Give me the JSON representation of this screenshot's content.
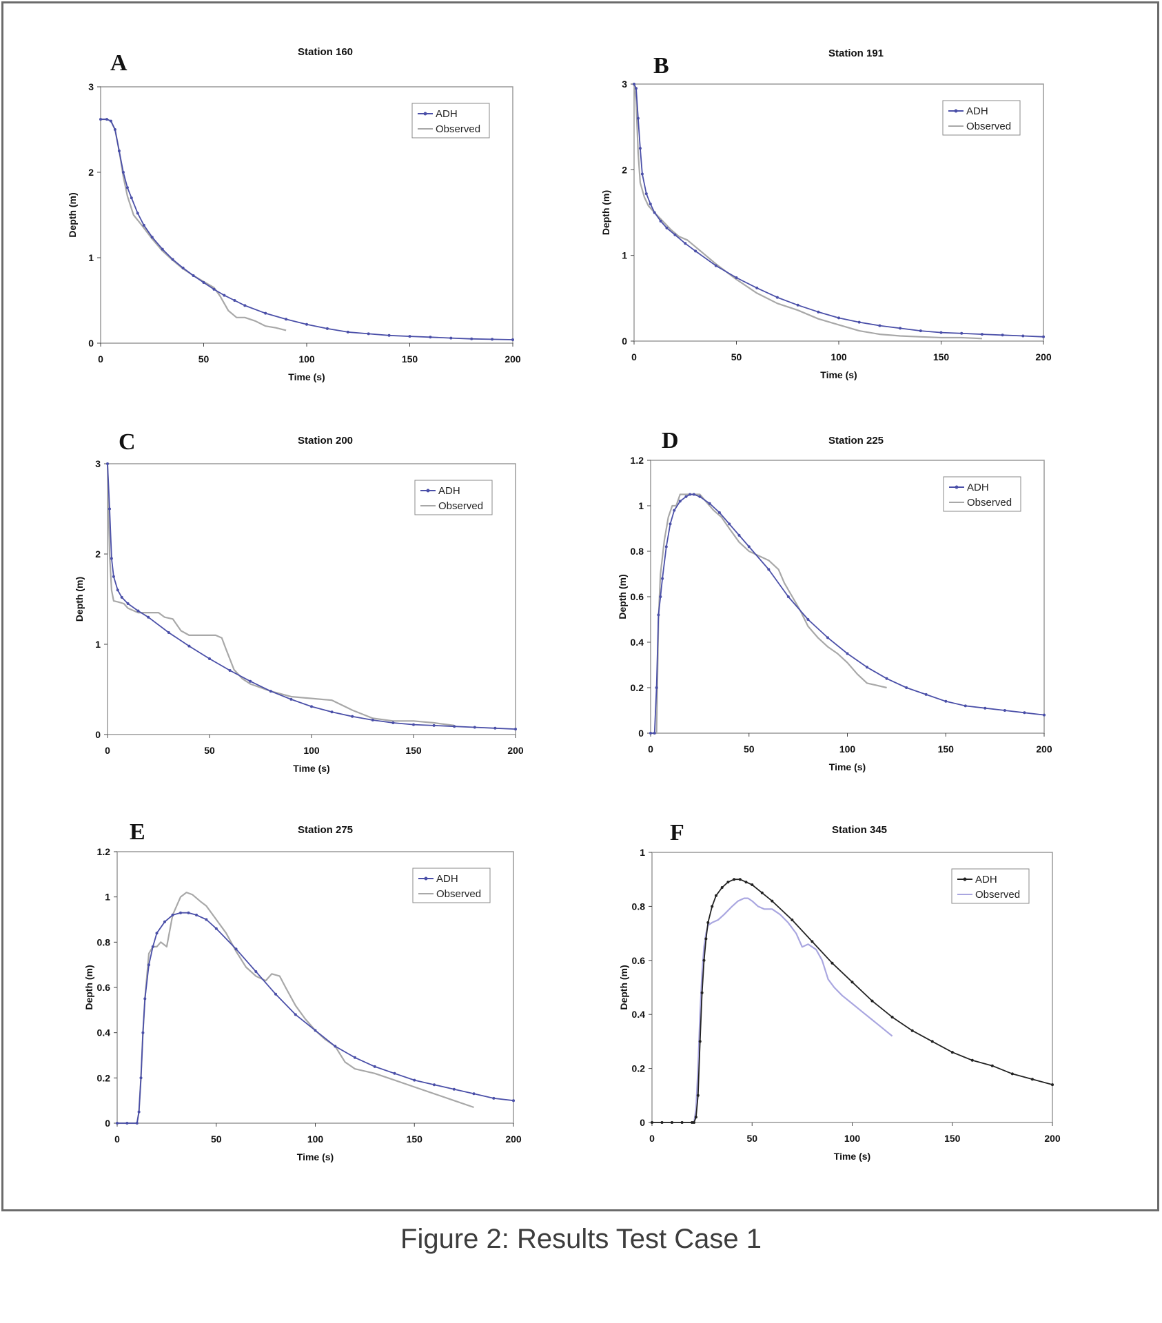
{
  "caption": "Figure 2: Results Test Case 1",
  "colors": {
    "adh_blue": "#4a4fa8",
    "adh_black": "#222222",
    "observed_gray": "#a8a8a8",
    "observed_lavender": "#a9a6e0",
    "frame": "#6b6b6b"
  },
  "chart_data": [
    {
      "type": "line",
      "panel": "A",
      "title": "Station 160",
      "xlabel": "Time (s)",
      "ylabel": "Depth (m)",
      "xlim": [
        0,
        200
      ],
      "ylim": [
        0,
        3
      ],
      "xticks": [
        "0",
        "50",
        "100",
        "150",
        "200"
      ],
      "yticks": [
        "0",
        "1",
        "2",
        "3"
      ],
      "legend": "top-right",
      "grid": false,
      "series": [
        {
          "name": "ADH",
          "color": "#4a4fa8",
          "marker": true,
          "x": [
            0,
            3,
            5,
            7,
            9,
            11,
            13,
            15,
            18,
            21,
            25,
            30,
            35,
            40,
            45,
            50,
            55,
            60,
            65,
            70,
            80,
            90,
            100,
            110,
            120,
            130,
            140,
            150,
            160,
            170,
            180,
            190,
            200
          ],
          "y": [
            2.62,
            2.62,
            2.6,
            2.5,
            2.25,
            2.0,
            1.82,
            1.7,
            1.52,
            1.38,
            1.24,
            1.1,
            0.98,
            0.88,
            0.79,
            0.71,
            0.63,
            0.56,
            0.5,
            0.44,
            0.35,
            0.28,
            0.22,
            0.17,
            0.13,
            0.11,
            0.09,
            0.08,
            0.07,
            0.06,
            0.05,
            0.045,
            0.04
          ]
        },
        {
          "name": "Observed",
          "color": "#a8a8a8",
          "marker": false,
          "x": [
            0,
            3,
            5,
            7,
            9,
            11,
            13,
            16,
            20,
            25,
            30,
            35,
            40,
            45,
            50,
            55,
            58,
            62,
            66,
            70,
            75,
            80,
            85,
            90
          ],
          "y": [
            2.62,
            2.62,
            2.6,
            2.5,
            2.25,
            1.95,
            1.72,
            1.5,
            1.38,
            1.22,
            1.08,
            0.97,
            0.87,
            0.79,
            0.72,
            0.65,
            0.55,
            0.38,
            0.3,
            0.3,
            0.26,
            0.2,
            0.18,
            0.15
          ]
        }
      ]
    },
    {
      "type": "line",
      "panel": "B",
      "title": "Station 191",
      "xlabel": "Time (s)",
      "ylabel": "Depth (m)",
      "xlim": [
        0,
        200
      ],
      "ylim": [
        0,
        3
      ],
      "xticks": [
        "0",
        "50",
        "100",
        "150",
        "200"
      ],
      "yticks": [
        "0",
        "1",
        "2",
        "3"
      ],
      "legend": "top-right",
      "grid": false,
      "series": [
        {
          "name": "ADH",
          "color": "#4a4fa8",
          "marker": true,
          "x": [
            0,
            1,
            2,
            3,
            4,
            6,
            8,
            10,
            13,
            16,
            20,
            25,
            30,
            40,
            50,
            60,
            70,
            80,
            90,
            100,
            110,
            120,
            130,
            140,
            150,
            160,
            170,
            180,
            190,
            200
          ],
          "y": [
            3.0,
            2.95,
            2.6,
            2.25,
            1.95,
            1.72,
            1.6,
            1.5,
            1.4,
            1.32,
            1.24,
            1.14,
            1.05,
            0.88,
            0.74,
            0.62,
            0.51,
            0.42,
            0.34,
            0.27,
            0.22,
            0.18,
            0.15,
            0.12,
            0.1,
            0.09,
            0.08,
            0.07,
            0.06,
            0.05
          ]
        },
        {
          "name": "Observed",
          "color": "#a8a8a8",
          "marker": false,
          "x": [
            0,
            1,
            2,
            3,
            5,
            7,
            10,
            14,
            18,
            22,
            26,
            30,
            35,
            40,
            50,
            60,
            70,
            80,
            90,
            100,
            110,
            120,
            130,
            140,
            150,
            160,
            170
          ],
          "y": [
            3.0,
            2.8,
            2.2,
            1.85,
            1.68,
            1.58,
            1.5,
            1.4,
            1.3,
            1.22,
            1.18,
            1.1,
            1.0,
            0.9,
            0.72,
            0.56,
            0.44,
            0.36,
            0.26,
            0.19,
            0.12,
            0.08,
            0.06,
            0.05,
            0.04,
            0.04,
            0.03
          ]
        }
      ]
    },
    {
      "type": "line",
      "panel": "C",
      "title": "Station 200",
      "xlabel": "Time (s)",
      "ylabel": "Depth (m)",
      "xlim": [
        0,
        200
      ],
      "ylim": [
        0,
        3
      ],
      "xticks": [
        "0",
        "50",
        "100",
        "150",
        "200"
      ],
      "yticks": [
        "0",
        "1",
        "2",
        "3"
      ],
      "legend": "top-right",
      "grid": false,
      "series": [
        {
          "name": "ADH",
          "color": "#4a4fa8",
          "marker": true,
          "x": [
            0,
            1,
            2,
            3,
            5,
            7,
            10,
            15,
            20,
            30,
            40,
            50,
            60,
            70,
            80,
            90,
            100,
            110,
            120,
            130,
            140,
            150,
            160,
            170,
            180,
            190,
            200
          ],
          "y": [
            3.0,
            2.5,
            1.95,
            1.75,
            1.6,
            1.52,
            1.45,
            1.37,
            1.3,
            1.13,
            0.98,
            0.84,
            0.71,
            0.59,
            0.48,
            0.39,
            0.31,
            0.25,
            0.2,
            0.16,
            0.13,
            0.11,
            0.1,
            0.09,
            0.08,
            0.07,
            0.06
          ]
        },
        {
          "name": "Observed",
          "color": "#a8a8a8",
          "marker": false,
          "x": [
            0,
            1,
            2,
            3,
            5,
            8,
            10,
            15,
            20,
            25,
            28,
            32,
            36,
            40,
            45,
            50,
            53,
            56,
            58,
            62,
            66,
            70,
            80,
            90,
            100,
            110,
            120,
            130,
            140,
            150,
            160,
            170
          ],
          "y": [
            3.0,
            2.0,
            1.6,
            1.48,
            1.47,
            1.45,
            1.4,
            1.35,
            1.35,
            1.35,
            1.3,
            1.28,
            1.15,
            1.1,
            1.1,
            1.1,
            1.1,
            1.07,
            0.95,
            0.72,
            0.62,
            0.56,
            0.48,
            0.42,
            0.4,
            0.38,
            0.27,
            0.18,
            0.15,
            0.15,
            0.13,
            0.1
          ]
        }
      ]
    },
    {
      "type": "line",
      "panel": "D",
      "title": "Station 225",
      "xlabel": "Time (s)",
      "ylabel": "Depth (m)",
      "xlim": [
        0,
        200
      ],
      "ylim": [
        0,
        1.2
      ],
      "xticks": [
        "0",
        "50",
        "100",
        "150",
        "200"
      ],
      "yticks": [
        "0",
        "0.2",
        "0.4",
        "0.6",
        "0.8",
        "1",
        "1.2"
      ],
      "legend": "top-right",
      "grid": false,
      "series": [
        {
          "name": "ADH",
          "color": "#4a4fa8",
          "marker": true,
          "x": [
            0,
            2,
            3,
            4,
            5,
            6,
            8,
            10,
            12,
            15,
            18,
            20,
            22,
            25,
            30,
            35,
            40,
            45,
            50,
            60,
            70,
            80,
            90,
            100,
            110,
            120,
            130,
            140,
            150,
            160,
            170,
            180,
            190,
            200
          ],
          "y": [
            0,
            0,
            0.2,
            0.52,
            0.6,
            0.68,
            0.82,
            0.92,
            0.98,
            1.02,
            1.04,
            1.05,
            1.05,
            1.04,
            1.01,
            0.97,
            0.92,
            0.87,
            0.82,
            0.72,
            0.6,
            0.5,
            0.42,
            0.35,
            0.29,
            0.24,
            0.2,
            0.17,
            0.14,
            0.12,
            0.11,
            0.1,
            0.09,
            0.08
          ]
        },
        {
          "name": "Observed",
          "color": "#a8a8a8",
          "marker": false,
          "x": [
            0,
            3,
            4,
            5,
            7,
            9,
            11,
            13,
            15,
            18,
            22,
            25,
            28,
            32,
            36,
            40,
            45,
            50,
            55,
            60,
            65,
            68,
            72,
            76,
            80,
            85,
            90,
            95,
            100,
            105,
            110,
            115,
            120
          ],
          "y": [
            0,
            0,
            0.5,
            0.7,
            0.85,
            0.95,
            1.0,
            1.0,
            1.05,
            1.05,
            1.05,
            1.05,
            1.02,
            0.98,
            0.95,
            0.9,
            0.84,
            0.8,
            0.78,
            0.76,
            0.72,
            0.66,
            0.6,
            0.54,
            0.47,
            0.42,
            0.38,
            0.35,
            0.31,
            0.26,
            0.22,
            0.21,
            0.2
          ]
        }
      ]
    },
    {
      "type": "line",
      "panel": "E",
      "title": "Station 275",
      "xlabel": "Time (s)",
      "ylabel": "Depth (m)",
      "xlim": [
        0,
        200
      ],
      "ylim": [
        0,
        1.2
      ],
      "xticks": [
        "0",
        "50",
        "100",
        "150",
        "200"
      ],
      "yticks": [
        "0",
        "0.2",
        "0.4",
        "0.6",
        "0.8",
        "1",
        "1.2"
      ],
      "legend": "top-right",
      "grid": false,
      "series": [
        {
          "name": "ADH",
          "color": "#4a4fa8",
          "marker": true,
          "x": [
            0,
            5,
            10,
            11,
            12,
            13,
            14,
            16,
            18,
            20,
            24,
            28,
            32,
            36,
            40,
            45,
            50,
            60,
            70,
            80,
            90,
            100,
            110,
            120,
            130,
            140,
            150,
            160,
            170,
            180,
            190,
            200
          ],
          "y": [
            0,
            0,
            0,
            0.05,
            0.2,
            0.4,
            0.55,
            0.7,
            0.78,
            0.84,
            0.89,
            0.92,
            0.93,
            0.93,
            0.92,
            0.9,
            0.86,
            0.77,
            0.67,
            0.57,
            0.48,
            0.41,
            0.34,
            0.29,
            0.25,
            0.22,
            0.19,
            0.17,
            0.15,
            0.13,
            0.11,
            0.1
          ]
        },
        {
          "name": "Observed",
          "color": "#a8a8a8",
          "marker": false,
          "x": [
            0,
            5,
            10,
            11,
            12,
            13,
            14,
            16,
            18,
            20,
            22,
            25,
            28,
            32,
            35,
            38,
            42,
            45,
            50,
            55,
            60,
            65,
            70,
            75,
            78,
            82,
            85,
            90,
            95,
            100,
            105,
            110,
            115,
            120,
            130,
            140,
            150,
            160,
            170,
            180
          ],
          "y": [
            0,
            0,
            0,
            0.05,
            0.2,
            0.4,
            0.55,
            0.75,
            0.78,
            0.78,
            0.8,
            0.78,
            0.92,
            1.0,
            1.02,
            1.01,
            0.98,
            0.96,
            0.9,
            0.84,
            0.76,
            0.69,
            0.65,
            0.63,
            0.66,
            0.65,
            0.6,
            0.52,
            0.46,
            0.41,
            0.37,
            0.34,
            0.27,
            0.24,
            0.22,
            0.19,
            0.16,
            0.13,
            0.1,
            0.07
          ]
        }
      ]
    },
    {
      "type": "line",
      "panel": "F",
      "title": "Station 345",
      "xlabel": "Time (s)",
      "ylabel": "Depth (m)",
      "xlim": [
        0,
        200
      ],
      "ylim": [
        0,
        1
      ],
      "xticks": [
        "0",
        "50",
        "100",
        "150",
        "200"
      ],
      "yticks": [
        "0",
        "0.2",
        "0.4",
        "0.6",
        "0.8",
        "1"
      ],
      "legend": "top-right",
      "grid": false,
      "series": [
        {
          "name": "ADH",
          "color": "#222222",
          "marker": true,
          "x": [
            0,
            5,
            10,
            15,
            20,
            21,
            22,
            23,
            24,
            25,
            26,
            27,
            28,
            30,
            32,
            35,
            38,
            41,
            44,
            47,
            50,
            55,
            60,
            70,
            80,
            90,
            100,
            110,
            120,
            130,
            140,
            150,
            160,
            170,
            180,
            190,
            200
          ],
          "y": [
            0,
            0,
            0,
            0,
            0,
            0,
            0.02,
            0.1,
            0.3,
            0.48,
            0.6,
            0.68,
            0.74,
            0.8,
            0.84,
            0.87,
            0.89,
            0.9,
            0.9,
            0.89,
            0.88,
            0.85,
            0.82,
            0.75,
            0.67,
            0.59,
            0.52,
            0.45,
            0.39,
            0.34,
            0.3,
            0.26,
            0.23,
            0.21,
            0.18,
            0.16,
            0.14
          ]
        },
        {
          "name": "Observed",
          "color": "#a9a6e0",
          "marker": false,
          "x": [
            21,
            22,
            23,
            24,
            25,
            26,
            27,
            28,
            30,
            33,
            36,
            40,
            43,
            46,
            48,
            50,
            53,
            56,
            60,
            64,
            68,
            72,
            75,
            78,
            82,
            85,
            88,
            91,
            95,
            100,
            105,
            110,
            115,
            120
          ],
          "y": [
            0,
            0.05,
            0.2,
            0.4,
            0.55,
            0.65,
            0.7,
            0.73,
            0.74,
            0.75,
            0.77,
            0.8,
            0.82,
            0.83,
            0.83,
            0.82,
            0.8,
            0.79,
            0.79,
            0.77,
            0.74,
            0.7,
            0.65,
            0.66,
            0.64,
            0.6,
            0.53,
            0.5,
            0.47,
            0.44,
            0.41,
            0.38,
            0.35,
            0.32
          ]
        }
      ]
    }
  ]
}
